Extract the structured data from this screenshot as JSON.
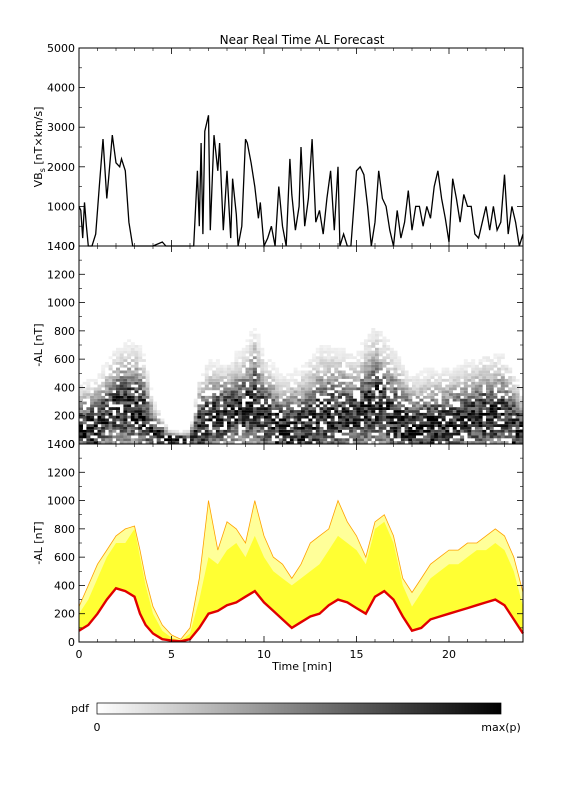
{
  "figure": {
    "title": "Near Real Time AL Forecast"
  },
  "chart_data": [
    {
      "type": "line",
      "panel": "top",
      "ylabel": "VB_s [nT×km/s]",
      "ylabel_main": "VB",
      "ylabel_sub": "s",
      "ylabel_rest": " [nT×km/s]",
      "ylim": [
        0,
        5000
      ],
      "xlim": [
        0,
        24
      ],
      "yticks": [
        0,
        1000,
        2000,
        3000,
        4000,
        5000
      ],
      "series": [
        {
          "color": "#000000",
          "x": [
            0,
            0.1,
            0.2,
            0.3,
            0.4,
            0.5,
            0.7,
            0.9,
            1.0,
            1.1,
            1.3,
            1.5,
            1.6,
            1.8,
            2.0,
            2.2,
            2.3,
            2.5,
            2.7,
            2.9,
            3.0,
            3.2,
            3.4,
            3.6,
            3.8,
            4.0,
            4.5,
            4.7,
            4.8,
            5.0,
            5.5,
            6.0,
            6.2,
            6.4,
            6.5,
            6.6,
            6.7,
            6.8,
            7.0,
            7.1,
            7.3,
            7.5,
            7.6,
            7.8,
            8.0,
            8.2,
            8.3,
            8.5,
            8.6,
            8.8,
            9.0,
            9.1,
            9.3,
            9.5,
            9.7,
            9.8,
            10.0,
            10.2,
            10.4,
            10.6,
            10.8,
            11.0,
            11.2,
            11.4,
            11.5,
            11.7,
            11.9,
            12.0,
            12.2,
            12.4,
            12.6,
            12.8,
            13.0,
            13.2,
            13.4,
            13.6,
            13.8,
            14.0,
            14.1,
            14.3,
            14.5,
            14.7,
            15.0,
            15.2,
            15.4,
            15.6,
            15.8,
            16.0,
            16.2,
            16.4,
            16.6,
            16.8,
            17.0,
            17.2,
            17.4,
            17.6,
            17.8,
            18.0,
            18.2,
            18.4,
            18.6,
            18.8,
            19.0,
            19.2,
            19.4,
            19.6,
            19.8,
            20.0,
            20.2,
            20.4,
            20.6,
            20.8,
            21.0,
            21.2,
            21.4,
            21.6,
            21.8,
            22.0,
            22.2,
            22.4,
            22.6,
            22.8,
            23.0,
            23.2,
            23.4,
            23.6,
            23.8,
            24.0
          ],
          "y": [
            1000,
            900,
            200,
            1100,
            500,
            0,
            0,
            300,
            900,
            1500,
            2700,
            1200,
            1700,
            2800,
            2100,
            2000,
            2200,
            1900,
            600,
            0,
            0,
            0,
            0,
            0,
            0,
            0,
            100,
            0,
            0,
            0,
            0,
            0,
            0,
            1900,
            500,
            2600,
            300,
            2900,
            3300,
            400,
            2800,
            1900,
            2600,
            400,
            1900,
            200,
            1700,
            800,
            0,
            500,
            2700,
            2600,
            2100,
            1500,
            700,
            1100,
            0,
            200,
            500,
            0,
            1500,
            500,
            0,
            2200,
            1300,
            400,
            1000,
            2500,
            500,
            1200,
            2700,
            600,
            900,
            300,
            1200,
            1900,
            400,
            2000,
            0,
            300,
            0,
            0,
            1900,
            2000,
            1800,
            1000,
            0,
            600,
            1900,
            1200,
            1000,
            400,
            0,
            900,
            200,
            600,
            1400,
            400,
            1000,
            1000,
            500,
            1000,
            700,
            1500,
            1900,
            1200,
            700,
            100,
            1700,
            1200,
            600,
            1300,
            1000,
            1000,
            300,
            200,
            600,
            1000,
            400,
            1000,
            400,
            600,
            1800,
            300,
            1000,
            600,
            0,
            300
          ]
        }
      ]
    },
    {
      "type": "heatmap",
      "panel": "middle",
      "ylabel": "-AL [nT]",
      "ylim": [
        0,
        1400
      ],
      "xlim": [
        0,
        24
      ],
      "yticks": [
        0,
        200,
        400,
        600,
        800,
        1000,
        1200,
        1400
      ],
      "profile": {
        "x": [
          0,
          1,
          2,
          3,
          3.5,
          4,
          5,
          5.5,
          6,
          6.5,
          7,
          8,
          9,
          9.5,
          10,
          11,
          12,
          13,
          14,
          15,
          16,
          17,
          18,
          19,
          20,
          21,
          22,
          23,
          24
        ],
        "median": [
          80,
          150,
          250,
          260,
          200,
          80,
          30,
          20,
          30,
          120,
          180,
          200,
          250,
          300,
          200,
          120,
          120,
          180,
          200,
          200,
          300,
          200,
          100,
          120,
          150,
          170,
          200,
          200,
          80
        ],
        "upper": [
          400,
          450,
          650,
          700,
          600,
          300,
          60,
          50,
          80,
          450,
          550,
          550,
          650,
          800,
          600,
          450,
          500,
          650,
          650,
          600,
          800,
          650,
          450,
          500,
          500,
          550,
          600,
          600,
          350
        ]
      },
      "pdf_colorbar": {
        "label": "pdf",
        "min_label": "0",
        "max_label": "max(p)"
      }
    },
    {
      "type": "area",
      "panel": "bottom",
      "ylabel": "-AL [nT]",
      "xlabel": "Time [min]",
      "ylim": [
        0,
        1400
      ],
      "xlim": [
        0,
        24
      ],
      "yticks": [
        0,
        200,
        400,
        600,
        800,
        1000,
        1200,
        1400
      ],
      "xticks": [
        0,
        5,
        10,
        15,
        20
      ],
      "x": [
        0,
        0.5,
        1,
        1.5,
        2,
        2.5,
        3,
        3.3,
        3.6,
        4,
        4.5,
        5,
        5.5,
        6,
        6.5,
        7,
        7.5,
        8,
        8.5,
        9,
        9.5,
        10,
        10.5,
        11,
        11.5,
        12,
        12.5,
        13,
        13.5,
        14,
        14.5,
        15,
        15.5,
        16,
        16.5,
        17,
        17.5,
        18,
        18.5,
        19,
        19.5,
        20,
        20.5,
        21,
        21.5,
        22,
        22.5,
        23,
        23.5,
        24
      ],
      "series": [
        {
          "name": "median",
          "color": "#e00000",
          "values": [
            80,
            120,
            200,
            300,
            380,
            360,
            320,
            200,
            120,
            60,
            20,
            10,
            5,
            20,
            100,
            200,
            220,
            260,
            280,
            320,
            360,
            280,
            220,
            160,
            100,
            140,
            180,
            200,
            260,
            300,
            280,
            240,
            200,
            320,
            360,
            300,
            180,
            80,
            100,
            160,
            180,
            200,
            220,
            240,
            260,
            280,
            300,
            260,
            160,
            60
          ]
        },
        {
          "name": "inner_upper",
          "color": "#ffff00",
          "values": [
            200,
            300,
            450,
            600,
            700,
            700,
            800,
            600,
            400,
            200,
            80,
            30,
            10,
            60,
            300,
            600,
            550,
            650,
            700,
            600,
            750,
            600,
            500,
            450,
            400,
            450,
            500,
            550,
            650,
            750,
            700,
            650,
            550,
            800,
            850,
            700,
            400,
            250,
            350,
            450,
            500,
            550,
            550,
            600,
            650,
            650,
            700,
            650,
            500,
            250
          ]
        },
        {
          "name": "outer_upper",
          "color": "#ffa000",
          "values": [
            250,
            400,
            550,
            650,
            750,
            800,
            820,
            650,
            450,
            250,
            120,
            50,
            20,
            100,
            450,
            1000,
            650,
            850,
            800,
            700,
            1000,
            750,
            600,
            550,
            450,
            550,
            700,
            750,
            800,
            1000,
            850,
            750,
            600,
            850,
            900,
            750,
            450,
            350,
            450,
            550,
            600,
            650,
            650,
            700,
            700,
            750,
            800,
            750,
            600,
            350
          ]
        }
      ]
    }
  ]
}
